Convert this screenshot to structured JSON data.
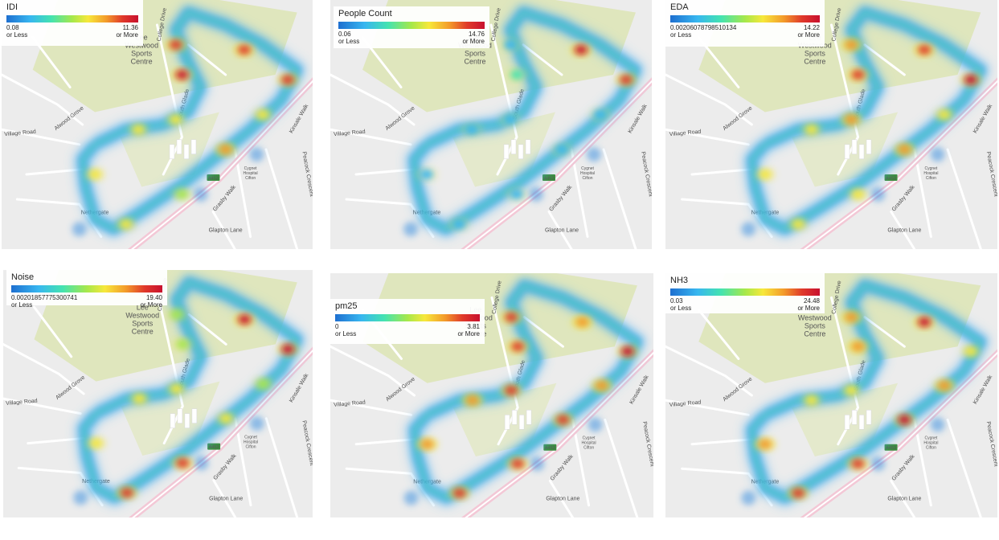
{
  "colors": {
    "park": "#dfe6bd",
    "land": "#ececec",
    "road": "#ffffff",
    "major_road": "#f3c8d6",
    "route_badge": "#3c8c3c",
    "heat_ramp": [
      "#1e6fd0",
      "#37b6f0",
      "#44e3b0",
      "#a6e84a",
      "#f7e83a",
      "#f39a2a",
      "#e03a2a",
      "#c8102e"
    ]
  },
  "map_labels": {
    "sports_centre": [
      "Lee",
      "Westwood",
      "Sports",
      "Centre"
    ],
    "hospital": [
      "Cygnet",
      "Hospital",
      "Cifton"
    ],
    "village_road": "Village Road",
    "alwood_grove": "Alwood Grove",
    "kinsale_walk": "Kinsale Walk",
    "peacock_crescent": "Peacock Crescent",
    "glapton_lane": "Glapton Lane",
    "garrett_grove": "Garrett Grove",
    "grasby_walk": "Grasby Walk",
    "groveside_crescent": "Groveside Crescent",
    "netherg": "Nethergate",
    "south_glade": "South Glade",
    "college_drive": "College Drive",
    "road_badge": "A453"
  },
  "panels": [
    {
      "id": "idi",
      "legend": {
        "title": "IDI",
        "min": "0.08",
        "max": "11.36",
        "min_note": "or Less",
        "max_note": "or More"
      },
      "hotspot_intensity": [
        0.55,
        0.95,
        0.9,
        0.85,
        0.9,
        0.6,
        0.5,
        0.65,
        0.55,
        0.45,
        0.5
      ]
    },
    {
      "id": "people-count",
      "legend": {
        "title": "People Count",
        "min": "0.06",
        "max": "14.76",
        "min_note": "or Less",
        "max_note": "or More"
      },
      "hotspot_intensity": [
        0.15,
        0.3,
        0.2,
        0.95,
        0.85,
        0.2,
        0.15,
        0.2,
        0.15,
        0.1,
        0.1
      ]
    },
    {
      "id": "eda",
      "legend": {
        "title": "EDA",
        "min": "0.00206078798510134",
        "max": "14.22",
        "min_note": "or Less",
        "max_note": "or More"
      },
      "hotspot_intensity": [
        0.6,
        0.8,
        0.75,
        0.9,
        0.95,
        0.75,
        0.55,
        0.7,
        0.6,
        0.5,
        0.55
      ]
    },
    {
      "id": "noise",
      "legend": {
        "title": "Noise",
        "min": "0.00201857775300741",
        "max": "19.40",
        "min_note": "or Less",
        "max_note": "or More"
      },
      "hotspot_intensity": [
        0.5,
        0.4,
        0.45,
        0.95,
        0.95,
        0.55,
        0.5,
        0.6,
        0.85,
        0.9,
        0.45
      ]
    },
    {
      "id": "pm25",
      "legend": {
        "title": "pm25",
        "min": "0",
        "max": "3.81",
        "min_note": "or Less",
        "max_note": "or More"
      },
      "hotspot_intensity": [
        0.7,
        0.85,
        0.8,
        0.7,
        0.95,
        0.8,
        0.75,
        0.85,
        0.8,
        0.85,
        0.75
      ]
    },
    {
      "id": "nh3",
      "legend": {
        "title": "NH3",
        "min": "0.03",
        "max": "24.48",
        "min_note": "or Less",
        "max_note": "or More"
      },
      "hotspot_intensity": [
        0.75,
        0.7,
        0.65,
        0.95,
        0.6,
        0.6,
        0.55,
        0.95,
        0.8,
        0.85,
        0.7
      ]
    }
  ]
}
